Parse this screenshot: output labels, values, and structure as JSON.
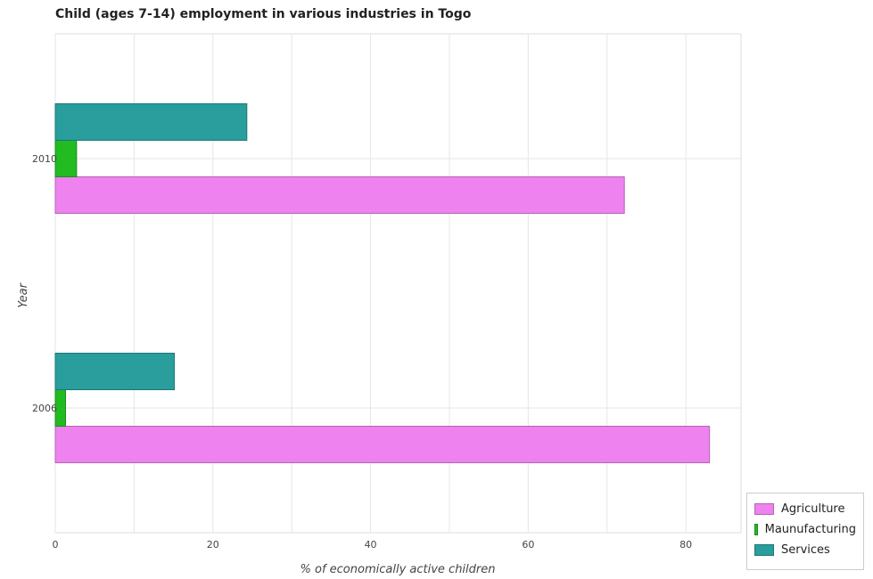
{
  "chart_data": {
    "type": "bar",
    "orientation": "horizontal",
    "title": "Child (ages 7-14) employment in various industries in Togo",
    "xlabel": "% of economically active children",
    "ylabel": "Year",
    "categories": [
      "2006",
      "2010"
    ],
    "xlim": [
      0,
      87
    ],
    "xticks": [
      0,
      20,
      40,
      60,
      80
    ],
    "series": [
      {
        "name": "Agriculture",
        "color": "#ee82ee",
        "stroke": "#b565b5",
        "values": [
          83.0,
          72.2
        ]
      },
      {
        "name": "Maunufacturing",
        "color": "#22bb22",
        "stroke": "#1a8f1a",
        "values": [
          1.3,
          2.7
        ]
      },
      {
        "name": "Services",
        "color": "#2a9d9d",
        "stroke": "#1f7676",
        "values": [
          15.1,
          24.3
        ]
      }
    ],
    "grid": true,
    "legend_position": "bottom-right"
  }
}
